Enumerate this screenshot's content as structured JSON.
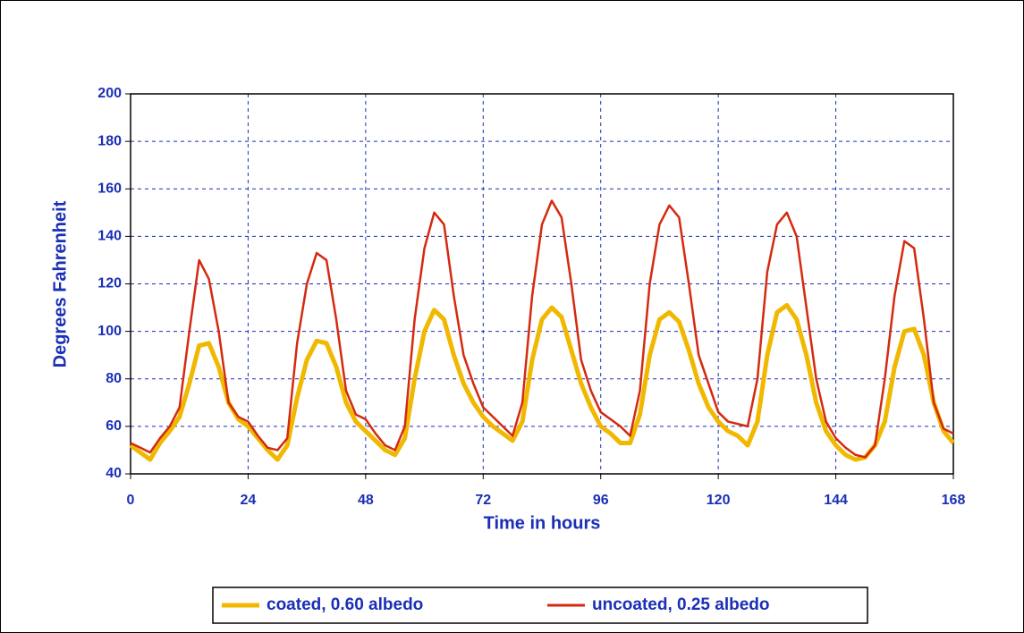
{
  "chart_data": {
    "type": "line",
    "x_label": "Time in hours",
    "y_label": "Degrees Fahrenheit",
    "x": [
      0,
      2,
      4,
      6,
      8,
      10,
      12,
      14,
      16,
      18,
      20,
      22,
      24,
      26,
      28,
      30,
      32,
      34,
      36,
      38,
      40,
      42,
      44,
      46,
      48,
      50,
      52,
      54,
      56,
      58,
      60,
      62,
      64,
      66,
      68,
      70,
      72,
      74,
      76,
      78,
      80,
      82,
      84,
      86,
      88,
      90,
      92,
      94,
      96,
      98,
      100,
      102,
      104,
      106,
      108,
      110,
      112,
      114,
      116,
      118,
      120,
      122,
      124,
      126,
      128,
      130,
      132,
      134,
      136,
      138,
      140,
      142,
      144,
      146,
      148,
      150,
      152,
      154,
      156,
      158,
      160,
      162,
      164,
      166,
      168
    ],
    "series": [
      {
        "name": "coated, 0.60 albedo",
        "color": "#f0b800",
        "values": [
          52,
          49,
          46,
          53,
          58,
          64,
          78,
          94,
          95,
          85,
          70,
          63,
          60,
          55,
          50,
          46,
          52,
          72,
          88,
          96,
          95,
          85,
          70,
          62,
          58,
          54,
          50,
          48,
          55,
          80,
          100,
          109,
          105,
          90,
          78,
          70,
          64,
          60,
          57,
          54,
          62,
          88,
          105,
          110,
          106,
          92,
          78,
          68,
          60,
          57,
          53,
          53,
          65,
          90,
          105,
          108,
          104,
          92,
          78,
          68,
          62,
          58,
          56,
          52,
          62,
          90,
          108,
          111,
          105,
          90,
          70,
          58,
          52,
          48,
          46,
          47,
          52,
          62,
          85,
          100,
          101,
          90,
          70,
          58,
          53
        ]
      },
      {
        "name": "uncoated, 0.25 albedo",
        "color": "#d42a10",
        "values": [
          53,
          51,
          49,
          55,
          60,
          68,
          100,
          130,
          122,
          100,
          70,
          64,
          62,
          56,
          51,
          50,
          55,
          95,
          120,
          133,
          130,
          105,
          75,
          65,
          63,
          57,
          52,
          50,
          60,
          105,
          135,
          150,
          145,
          115,
          90,
          78,
          68,
          64,
          60,
          56,
          70,
          115,
          145,
          155,
          148,
          120,
          88,
          75,
          66,
          63,
          60,
          56,
          75,
          120,
          145,
          153,
          148,
          120,
          90,
          78,
          66,
          62,
          61,
          60,
          80,
          125,
          145,
          150,
          140,
          110,
          80,
          62,
          55,
          51,
          48,
          47,
          52,
          80,
          115,
          138,
          135,
          105,
          70,
          59,
          57
        ]
      }
    ],
    "xlim": [
      0,
      168
    ],
    "xticks": [
      0,
      24,
      48,
      72,
      96,
      120,
      144,
      168
    ],
    "ylim": [
      40,
      200
    ],
    "yticks": [
      40,
      60,
      80,
      100,
      120,
      140,
      160,
      180,
      200
    ],
    "grid": true,
    "legend": "bottom"
  }
}
